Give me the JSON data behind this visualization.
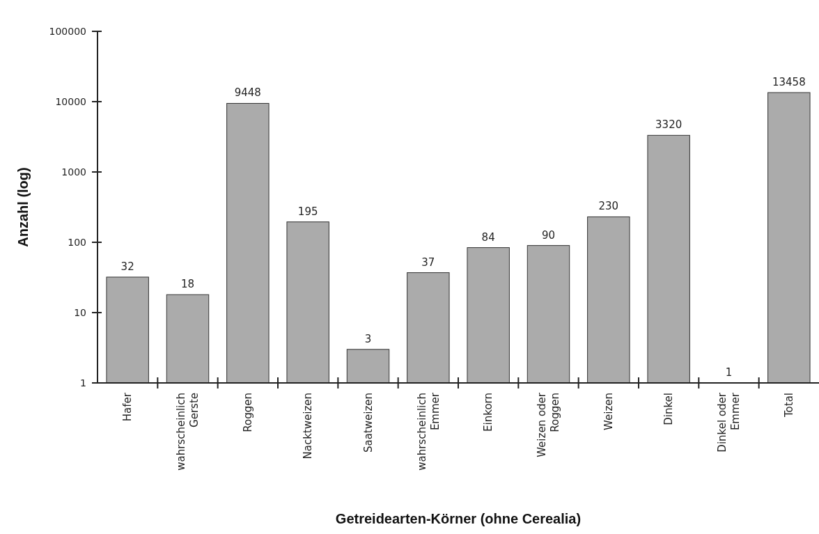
{
  "chart_data": {
    "type": "bar",
    "xlabel": "Getreidearten-Körner (ohne Cerealia)",
    "ylabel": "Anzahl (log)",
    "categories": [
      "Hafer",
      "wahrscheinlich\nGerste",
      "Roggen",
      "Nacktweizen",
      "Saatweizen",
      "wahrscheinlich\nEmmer",
      "Einkorn",
      "Weizen oder\nRoggen",
      "Weizen",
      "Dinkel",
      "Dinkel oder\nEmmer",
      "Total"
    ],
    "values": [
      32,
      18,
      9448,
      195,
      3,
      37,
      84,
      90,
      230,
      3320,
      1,
      13458
    ],
    "color": "#ababab",
    "log": true,
    "ylim": [
      1,
      100000
    ],
    "yticks": [
      1,
      10,
      100,
      1000,
      10000,
      100000
    ],
    "data_labels": true,
    "grid": false
  }
}
